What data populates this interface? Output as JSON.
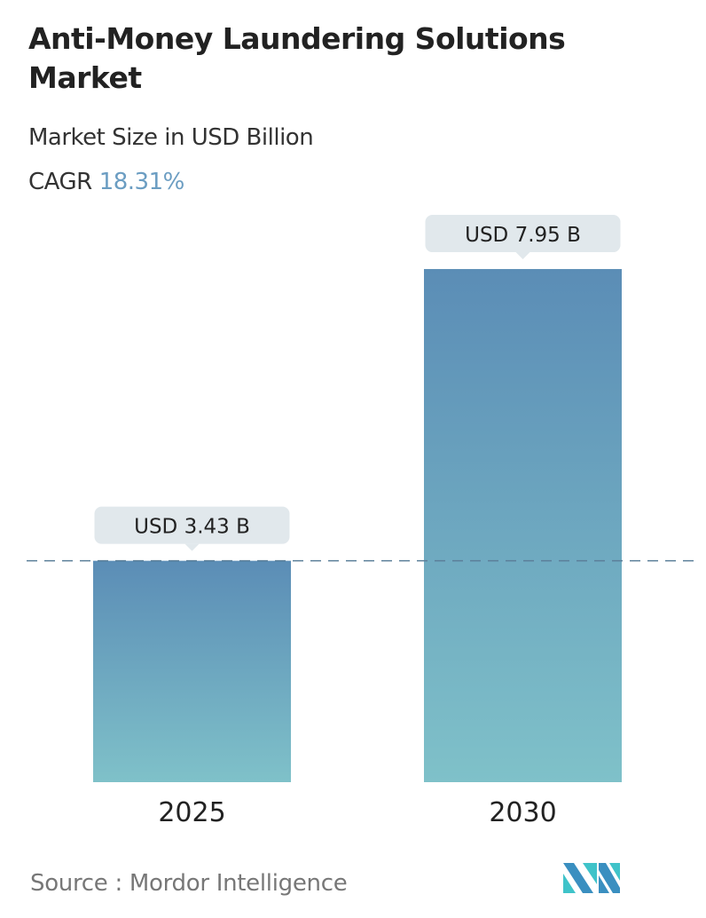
{
  "title": "Anti-Money Laundering Solutions Market",
  "subtitle": "Market Size in USD Billion",
  "cagr": {
    "label": "CAGR",
    "value": "18.31%"
  },
  "source": "Source :  Mordor Intelligence",
  "logo_text": "MN",
  "chart_data": {
    "type": "bar",
    "categories": [
      "2025",
      "2030"
    ],
    "values": [
      3.43,
      7.95
    ],
    "data_labels": [
      "USD 3.43 B",
      "USD 7.95 B"
    ],
    "title": "Anti-Money Laundering Solutions Market",
    "ylabel": "Market Size in USD Billion",
    "reference_line": 3.43,
    "grid": false,
    "colors": {
      "bar_top": "#5b8db6",
      "bar_bottom": "#7fc1c9",
      "label_bg": "#e1e8ec",
      "dash": "#5b7f99"
    }
  }
}
